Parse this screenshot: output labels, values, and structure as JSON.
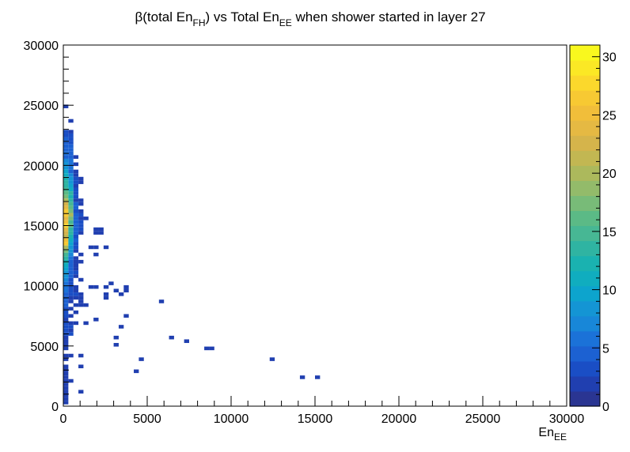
{
  "chart_data": {
    "type": "heatmap",
    "title": {
      "prefix": "β(total En",
      "sub1": "FH",
      "mid": ") vs Total En",
      "sub2": "EE",
      "suffix": " when  shower started in layer 27"
    },
    "xlabel": {
      "base": "En",
      "sub": "EE"
    },
    "ylabel": "",
    "xlim": [
      0,
      30000
    ],
    "ylim": [
      0,
      30000
    ],
    "x_ticks": [
      "0",
      "5000",
      "10000",
      "15000",
      "20000",
      "25000",
      "30000"
    ],
    "y_ticks": [
      "0",
      "5000",
      "10000",
      "15000",
      "20000",
      "25000",
      "30000"
    ],
    "z_range": [
      0,
      31
    ],
    "z_ticks": [
      "0",
      "5",
      "10",
      "15",
      "20",
      "25",
      "30"
    ],
    "palette": [
      "#2a3592",
      "#203fb0",
      "#1a4ec5",
      "#1c61d2",
      "#1b72d8",
      "#1887d8",
      "#1495d4",
      "#0da4cd",
      "#10adbf",
      "#1ab2b0",
      "#2fb4a2",
      "#47b794",
      "#5bba86",
      "#78bb78",
      "#93bb6a",
      "#acb95c",
      "#c2b752",
      "#d5b44b",
      "#e5b943",
      "#f1be3a",
      "#f7c933",
      "#fbd82c",
      "#fbe825",
      "#f9f81e"
    ],
    "cell_size": [
      300,
      300
    ],
    "cells": [
      [
        150,
        24900,
        2
      ],
      [
        450,
        23700,
        2
      ],
      [
        150,
        22800,
        3
      ],
      [
        450,
        22800,
        2
      ],
      [
        150,
        22500,
        3
      ],
      [
        450,
        22500,
        3
      ],
      [
        150,
        22200,
        4
      ],
      [
        450,
        22200,
        3
      ],
      [
        150,
        21900,
        4
      ],
      [
        450,
        21900,
        3
      ],
      [
        150,
        21600,
        5
      ],
      [
        450,
        21600,
        4
      ],
      [
        150,
        21300,
        5
      ],
      [
        450,
        21300,
        5
      ],
      [
        150,
        21000,
        6
      ],
      [
        450,
        21000,
        4
      ],
      [
        150,
        20700,
        5
      ],
      [
        450,
        20700,
        5
      ],
      [
        750,
        20700,
        2
      ],
      [
        150,
        20400,
        7
      ],
      [
        450,
        20400,
        6
      ],
      [
        150,
        20100,
        8
      ],
      [
        450,
        20100,
        6
      ],
      [
        750,
        20100,
        2
      ],
      [
        150,
        19800,
        8
      ],
      [
        450,
        19800,
        6
      ],
      [
        150,
        19500,
        10
      ],
      [
        450,
        19500,
        5
      ],
      [
        750,
        19500,
        2
      ],
      [
        150,
        19200,
        11
      ],
      [
        450,
        19200,
        7
      ],
      [
        750,
        19200,
        2
      ],
      [
        150,
        18900,
        12
      ],
      [
        450,
        18900,
        8
      ],
      [
        750,
        18900,
        3
      ],
      [
        1050,
        18900,
        2
      ],
      [
        150,
        18600,
        13
      ],
      [
        450,
        18600,
        9
      ],
      [
        750,
        18600,
        3
      ],
      [
        1050,
        18600,
        2
      ],
      [
        150,
        18300,
        14
      ],
      [
        450,
        18300,
        10
      ],
      [
        750,
        18300,
        2
      ],
      [
        150,
        18000,
        15
      ],
      [
        450,
        18000,
        11
      ],
      [
        750,
        18000,
        3
      ],
      [
        150,
        17700,
        16
      ],
      [
        450,
        17700,
        13
      ],
      [
        750,
        17700,
        3
      ],
      [
        150,
        17400,
        18
      ],
      [
        450,
        17400,
        12
      ],
      [
        750,
        17400,
        3
      ],
      [
        150,
        17100,
        20
      ],
      [
        450,
        17100,
        13
      ],
      [
        750,
        17100,
        2
      ],
      [
        1050,
        17100,
        2
      ],
      [
        150,
        16800,
        22
      ],
      [
        450,
        16800,
        15
      ],
      [
        750,
        16800,
        4
      ],
      [
        1050,
        16800,
        2
      ],
      [
        150,
        16500,
        24
      ],
      [
        450,
        16500,
        16
      ],
      [
        750,
        16500,
        4
      ],
      [
        150,
        16200,
        27
      ],
      [
        450,
        16200,
        18
      ],
      [
        750,
        16200,
        3
      ],
      [
        1050,
        16200,
        2
      ],
      [
        150,
        15900,
        26
      ],
      [
        450,
        15900,
        20
      ],
      [
        750,
        15900,
        4
      ],
      [
        1050,
        15900,
        3
      ],
      [
        150,
        15600,
        24
      ],
      [
        450,
        15600,
        17
      ],
      [
        750,
        15600,
        4
      ],
      [
        1050,
        15600,
        2
      ],
      [
        1350,
        15600,
        2
      ],
      [
        150,
        15300,
        25
      ],
      [
        450,
        15300,
        15
      ],
      [
        750,
        15300,
        5
      ],
      [
        1050,
        15300,
        3
      ],
      [
        150,
        15000,
        28
      ],
      [
        450,
        15000,
        16
      ],
      [
        750,
        15000,
        4
      ],
      [
        1050,
        15000,
        3
      ],
      [
        150,
        14700,
        24
      ],
      [
        450,
        14700,
        14
      ],
      [
        750,
        14700,
        5
      ],
      [
        1050,
        14700,
        3
      ],
      [
        1950,
        14700,
        2
      ],
      [
        2250,
        14700,
        2
      ],
      [
        150,
        14400,
        23
      ],
      [
        450,
        14400,
        13
      ],
      [
        750,
        14400,
        4
      ],
      [
        1050,
        14400,
        2
      ],
      [
        1950,
        14400,
        2
      ],
      [
        2250,
        14400,
        2
      ],
      [
        150,
        14100,
        21
      ],
      [
        450,
        14100,
        12
      ],
      [
        750,
        14100,
        3
      ],
      [
        150,
        13800,
        25
      ],
      [
        450,
        13800,
        11
      ],
      [
        750,
        13800,
        4
      ],
      [
        150,
        13500,
        27
      ],
      [
        450,
        13500,
        10
      ],
      [
        750,
        13500,
        3
      ],
      [
        150,
        13200,
        20
      ],
      [
        450,
        13200,
        9
      ],
      [
        750,
        13200,
        3
      ],
      [
        1650,
        13200,
        2
      ],
      [
        1950,
        13200,
        2
      ],
      [
        2550,
        13200,
        2
      ],
      [
        150,
        12900,
        17
      ],
      [
        450,
        12900,
        8
      ],
      [
        750,
        12900,
        2
      ],
      [
        150,
        12600,
        15
      ],
      [
        450,
        12600,
        7
      ],
      [
        1050,
        12600,
        2
      ],
      [
        1950,
        12600,
        2
      ],
      [
        150,
        12300,
        13
      ],
      [
        450,
        12300,
        6
      ],
      [
        750,
        12300,
        2
      ],
      [
        150,
        12000,
        12
      ],
      [
        450,
        12000,
        5
      ],
      [
        750,
        12000,
        2
      ],
      [
        1050,
        12000,
        2
      ],
      [
        150,
        11700,
        11
      ],
      [
        450,
        11700,
        5
      ],
      [
        750,
        11700,
        2
      ],
      [
        150,
        11400,
        10
      ],
      [
        450,
        11400,
        4
      ],
      [
        750,
        11400,
        2
      ],
      [
        150,
        11100,
        9
      ],
      [
        450,
        11100,
        4
      ],
      [
        750,
        11100,
        3
      ],
      [
        150,
        10800,
        8
      ],
      [
        450,
        10800,
        4
      ],
      [
        750,
        10800,
        2
      ],
      [
        150,
        10500,
        7
      ],
      [
        450,
        10500,
        3
      ],
      [
        1050,
        10500,
        2
      ],
      [
        150,
        10200,
        6
      ],
      [
        450,
        10200,
        3
      ],
      [
        2850,
        10200,
        2
      ],
      [
        150,
        9900,
        6
      ],
      [
        450,
        9900,
        3
      ],
      [
        750,
        9900,
        2
      ],
      [
        1650,
        9900,
        2
      ],
      [
        1950,
        9900,
        2
      ],
      [
        2550,
        9900,
        2
      ],
      [
        3750,
        9900,
        2
      ],
      [
        150,
        9600,
        6
      ],
      [
        450,
        9600,
        3
      ],
      [
        750,
        9600,
        2
      ],
      [
        3150,
        9600,
        2
      ],
      [
        3750,
        9600,
        2
      ],
      [
        150,
        9300,
        5
      ],
      [
        450,
        9300,
        3
      ],
      [
        750,
        9300,
        3
      ],
      [
        1050,
        9300,
        2
      ],
      [
        2550,
        9300,
        2
      ],
      [
        3450,
        9300,
        2
      ],
      [
        150,
        9000,
        4
      ],
      [
        450,
        9000,
        2
      ],
      [
        750,
        9000,
        2
      ],
      [
        1050,
        9000,
        2
      ],
      [
        2550,
        9000,
        2
      ],
      [
        150,
        8700,
        4
      ],
      [
        450,
        8700,
        2
      ],
      [
        1050,
        8700,
        2
      ],
      [
        5850,
        8700,
        2
      ],
      [
        150,
        8400,
        4
      ],
      [
        750,
        8400,
        2
      ],
      [
        1050,
        8400,
        2
      ],
      [
        1350,
        8400,
        2
      ],
      [
        150,
        8100,
        3
      ],
      [
        450,
        8100,
        2
      ],
      [
        150,
        7800,
        3
      ],
      [
        750,
        7800,
        2
      ],
      [
        150,
        7500,
        3
      ],
      [
        450,
        7500,
        2
      ],
      [
        3750,
        7500,
        2
      ],
      [
        150,
        7200,
        2
      ],
      [
        1950,
        7200,
        2
      ],
      [
        150,
        6900,
        3
      ],
      [
        450,
        6900,
        2
      ],
      [
        750,
        6900,
        2
      ],
      [
        1350,
        6900,
        2
      ],
      [
        150,
        6600,
        3
      ],
      [
        450,
        6600,
        3
      ],
      [
        3450,
        6600,
        2
      ],
      [
        150,
        6300,
        3
      ],
      [
        450,
        6300,
        2
      ],
      [
        150,
        6000,
        3
      ],
      [
        450,
        6000,
        3
      ],
      [
        150,
        5700,
        2
      ],
      [
        3150,
        5700,
        2
      ],
      [
        6450,
        5700,
        2
      ],
      [
        150,
        5400,
        2
      ],
      [
        7350,
        5400,
        2
      ],
      [
        150,
        5100,
        2
      ],
      [
        3150,
        5100,
        2
      ],
      [
        150,
        4800,
        2
      ],
      [
        8550,
        4800,
        2
      ],
      [
        8850,
        4800,
        2
      ],
      [
        150,
        4200,
        2
      ],
      [
        450,
        4200,
        2
      ],
      [
        1050,
        4200,
        2
      ],
      [
        150,
        3900,
        2
      ],
      [
        4650,
        3900,
        2
      ],
      [
        12450,
        3900,
        2
      ],
      [
        150,
        3300,
        2
      ],
      [
        1050,
        3300,
        2
      ],
      [
        150,
        3000,
        2
      ],
      [
        4350,
        2900,
        2
      ],
      [
        150,
        2700,
        2
      ],
      [
        150,
        2400,
        2
      ],
      [
        14250,
        2400,
        2
      ],
      [
        15150,
        2400,
        2
      ],
      [
        150,
        2100,
        2
      ],
      [
        450,
        2100,
        2
      ],
      [
        150,
        1800,
        2
      ],
      [
        150,
        1500,
        2
      ],
      [
        150,
        1200,
        2
      ],
      [
        1050,
        1200,
        2
      ],
      [
        150,
        900,
        2
      ],
      [
        150,
        600,
        2
      ],
      [
        150,
        300,
        2
      ]
    ]
  }
}
